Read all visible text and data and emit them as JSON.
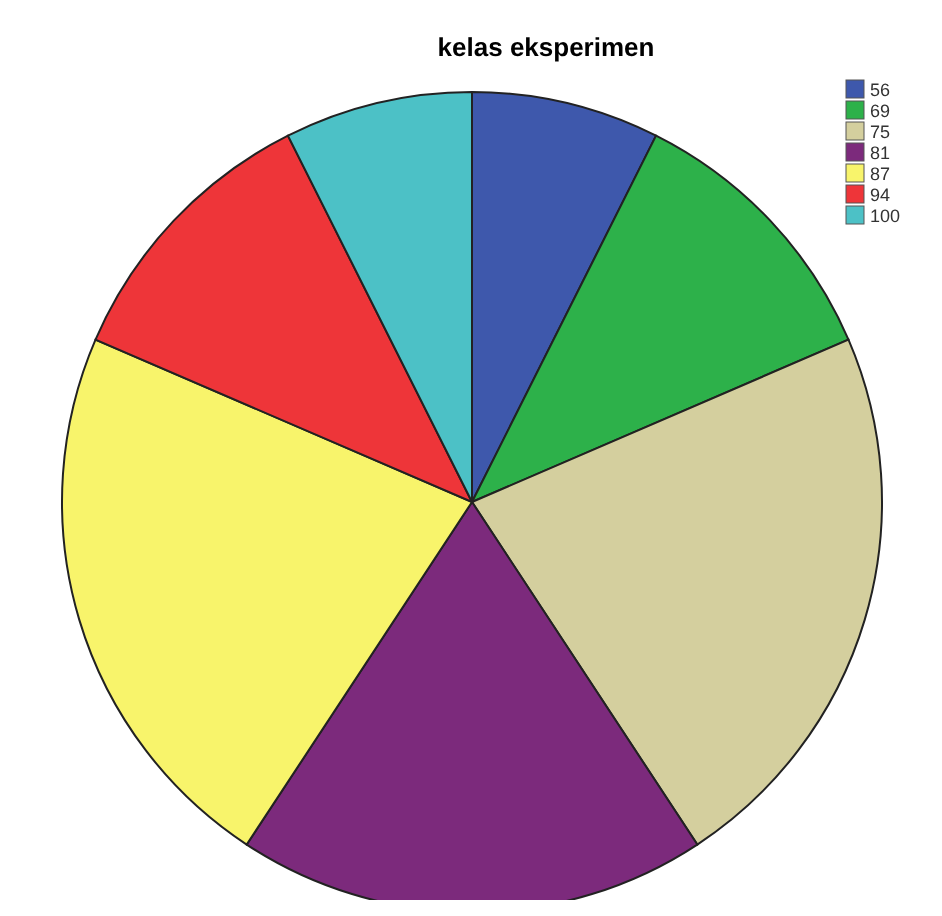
{
  "chart_data": {
    "type": "pie",
    "title": "kelas eksperimen",
    "categories": [
      "56",
      "69",
      "75",
      "81",
      "87",
      "94",
      "100"
    ],
    "values": [
      7.41,
      11.11,
      22.22,
      18.52,
      22.22,
      11.11,
      7.41
    ],
    "colors": [
      "#3e58ac",
      "#2db14a",
      "#d4cf9e",
      "#7c2a7c",
      "#f8f46b",
      "#ee3539",
      "#4cc1c6"
    ],
    "legend": "top right"
  }
}
